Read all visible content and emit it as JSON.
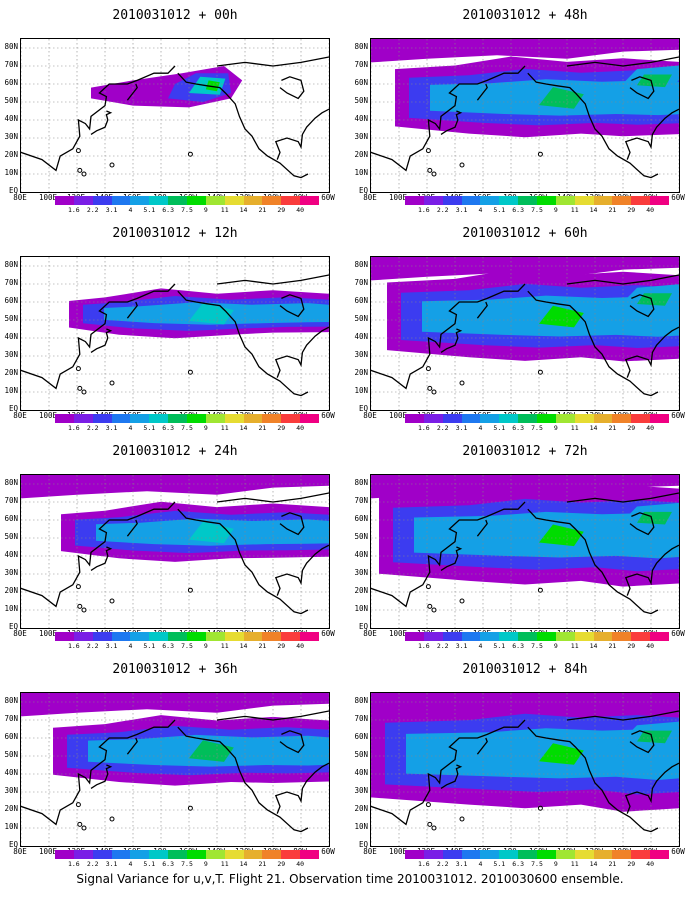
{
  "caption": "Signal Variance for u,v,T. Flight 21. Observation time 2010031012. 2010030600 ensemble.",
  "panels": [
    {
      "title": "2010031012 + 00h",
      "lead": 0
    },
    {
      "title": "2010031012 + 12h",
      "lead": 12
    },
    {
      "title": "2010031012 + 24h",
      "lead": 24
    },
    {
      "title": "2010031012 + 36h",
      "lead": 36
    },
    {
      "title": "2010031012 + 48h",
      "lead": 48
    },
    {
      "title": "2010031012 + 60h",
      "lead": 60
    },
    {
      "title": "2010031012 + 72h",
      "lead": 72
    },
    {
      "title": "2010031012 + 84h",
      "lead": 84
    }
  ],
  "lat_labels": [
    "80N",
    "70N",
    "60N",
    "50N",
    "40N",
    "30N",
    "20N",
    "10N",
    "EQ"
  ],
  "lon_labels": [
    "80E",
    "100E",
    "120E",
    "140E",
    "160E",
    "180",
    "160W",
    "140W",
    "120W",
    "100W",
    "80W",
    "60W"
  ],
  "colorbar": {
    "levels": [
      "1.6",
      "2.2",
      "3.1",
      "4",
      "5.1",
      "6.3",
      "7.5",
      "9",
      "11",
      "14",
      "21",
      "29",
      "40"
    ],
    "colors": [
      "#a000c8",
      "#7a1ee6",
      "#3c3cf0",
      "#1e78f0",
      "#14a0e6",
      "#00c8c8",
      "#00be5a",
      "#00dc00",
      "#a0e632",
      "#e6dc32",
      "#e6af2d",
      "#f08228",
      "#fa3c3c",
      "#f00082"
    ]
  }
}
